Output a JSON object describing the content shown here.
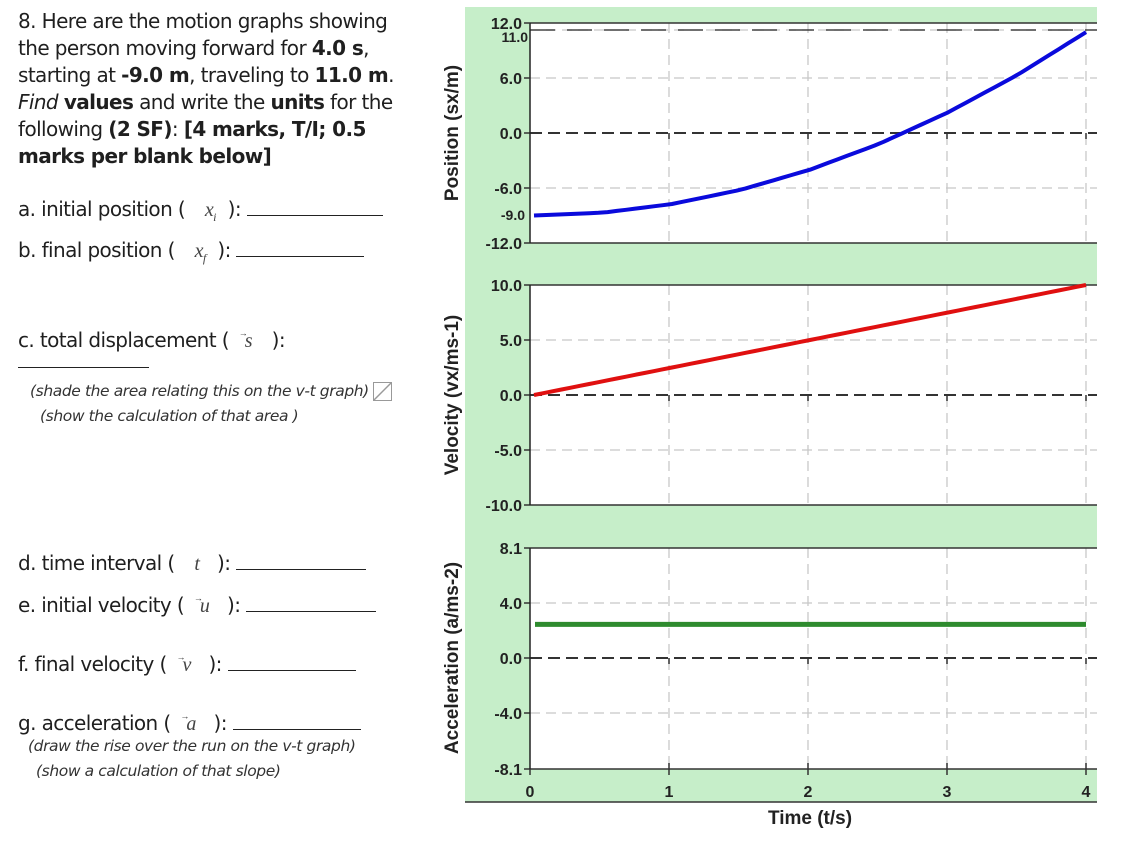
{
  "question": {
    "number": "8.",
    "lines": [
      [
        "8. Here are the motion graphs showing"
      ],
      [
        "the person moving forward for ",
        "4.0 s",
        ","
      ],
      [
        "starting at ",
        "-9.0 m",
        ", traveling to ",
        "11.0 m",
        "."
      ],
      [
        "Find",
        " ",
        "values",
        " and write the ",
        "units",
        " for the"
      ],
      [
        "following ",
        "(2 SF)",
        ": ",
        "[4 marks, T/I; 0.5"
      ],
      [
        "marks per blank below]"
      ]
    ],
    "intro_l1": "8. Here are the motion graphs showing",
    "intro_l2a": "the person moving forward for ",
    "intro_l2b": "4.0 s",
    "intro_l2c": ",",
    "intro_l3a": "starting at ",
    "intro_l3b": "-9.0 m",
    "intro_l3c": ", traveling to ",
    "intro_l3d": "11.0 m",
    "intro_l3e": ".",
    "intro_l4a": "Find",
    "intro_l4b": "values",
    "intro_l4c": " and write the ",
    "intro_l4d": "units",
    "intro_l4e": " for the",
    "intro_l5a": "following ",
    "intro_l5b": "(2 SF)",
    "intro_l5c": ": ",
    "intro_l5d": "[4 marks, T/I; 0.5",
    "intro_l6": "marks per blank below]"
  },
  "items": {
    "a": {
      "label": "a. initial position ( ",
      "symbol": "x",
      "sub": "i",
      "close": " ):"
    },
    "b": {
      "label": "b. final position ( ",
      "symbol": "x",
      "sub": "f",
      "close": " ):"
    },
    "c": {
      "label": "c. total displacement ( ",
      "symbol": "s",
      "close": " ):",
      "note1": "(shade the area relating this on the v-t graph)",
      "note2": "(show the calculation of that area )"
    },
    "d": {
      "label": "d. time interval ( ",
      "symbol": "t",
      "close": " ):"
    },
    "e": {
      "label": "e. initial velocity ( ",
      "symbol": "u",
      "close": " ):"
    },
    "f": {
      "label": "f. final velocity ( ",
      "symbol": "v",
      "close": " ):"
    },
    "g": {
      "label": "g. acceleration ( ",
      "symbol": "a",
      "close": " ):",
      "note1": "(draw the rise over the run on the v-t graph)",
      "note2": "(show a calculation of that slope)"
    }
  },
  "colors": {
    "panel_bg": "#c6eec9",
    "position_line": "#0a0adc",
    "velocity_line": "#e01010",
    "acceleration_line": "#2e8b2e",
    "grid": "#c8c8c8",
    "zero_line": "#333333"
  },
  "chart_data": [
    {
      "type": "line",
      "title": "",
      "xlabel": "Time (t/s)",
      "ylabel": "Position (sx/m)",
      "x": [
        0,
        0.5,
        1,
        1.5,
        2,
        2.5,
        3,
        3.5,
        4
      ],
      "series": [
        {
          "name": "position",
          "values": [
            -9.0,
            -8.69,
            -7.75,
            -6.19,
            -4.0,
            -1.19,
            2.25,
            6.31,
            11.0
          ]
        }
      ],
      "ylim": [
        -12.0,
        12.0
      ],
      "xlim": [
        0,
        4
      ],
      "yticks": [
        "12.0",
        "6.0",
        "0.0",
        "-6.0",
        "-12.0"
      ],
      "annotations": [
        "11.0",
        "-9.0"
      ],
      "grid": true
    },
    {
      "type": "line",
      "xlabel": "Time (t/s)",
      "ylabel": "Velocity (vx/ms-1)",
      "x": [
        0,
        1,
        2,
        3,
        4
      ],
      "series": [
        {
          "name": "velocity",
          "values": [
            0.0,
            2.5,
            5.0,
            7.5,
            10.0
          ]
        }
      ],
      "ylim": [
        -10.0,
        10.0
      ],
      "xlim": [
        0,
        4
      ],
      "yticks": [
        "10.0",
        "5.0",
        "0.0",
        "-5.0",
        "-10.0"
      ],
      "grid": true
    },
    {
      "type": "line",
      "xlabel": "Time (t/s)",
      "ylabel": "Acceleration (a/ms-2)",
      "x": [
        0,
        1,
        2,
        3,
        4
      ],
      "series": [
        {
          "name": "acceleration",
          "values": [
            2.5,
            2.5,
            2.5,
            2.5,
            2.5
          ]
        }
      ],
      "ylim": [
        -8.1,
        8.1
      ],
      "xlim": [
        0,
        4
      ],
      "yticks": [
        "8.1",
        "4.0",
        "0.0",
        "-4.0",
        "-8.1"
      ],
      "xticks": [
        "0",
        "1",
        "2",
        "3",
        "4"
      ],
      "grid": true
    }
  ],
  "graph_labels": {
    "pos_ylabel": "Position (sx/m)",
    "vel_ylabel": "Velocity (vx/ms-1)",
    "acc_ylabel": "Acceleration (a/ms-2)",
    "xlabel": "Time (t/s)",
    "pos_ticks": [
      "12.0",
      "6.0",
      "0.0",
      "-6.0",
      "-12.0"
    ],
    "pos_ann_top": "11.0",
    "pos_ann_start": "-9.0",
    "vel_ticks": [
      "10.0",
      "5.0",
      "0.0",
      "-5.0",
      "-10.0"
    ],
    "acc_ticks": [
      "8.1",
      "4.0",
      "0.0",
      "-4.0",
      "-8.1"
    ],
    "x_ticks": [
      "0",
      "1",
      "2",
      "3",
      "4"
    ]
  }
}
